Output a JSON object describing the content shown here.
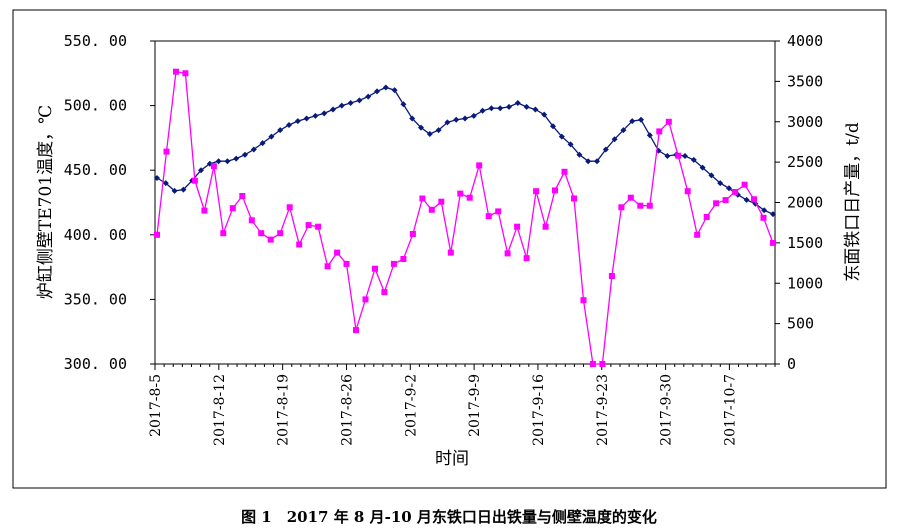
{
  "chart_data": {
    "type": "line",
    "caption": "图 1　2017 年 8 月-10 月东铁口日出铁量与侧壁温度的变化",
    "xlabel": "时间",
    "ylabel_left": "炉缸侧壁TE701温度，℃",
    "ylabel_right": "东面铁口日产量，t/d",
    "x_ticks": [
      "2017-8-5",
      "2017-8-12",
      "2017-8-19",
      "2017-8-26",
      "2017-9-2",
      "2017-9-9",
      "2017-9-16",
      "2017-9-23",
      "2017-9-30",
      "2017-10-7"
    ],
    "ylim_left": [
      300,
      550
    ],
    "ylim_right": [
      0,
      4000
    ],
    "y_ticks_left": [
      "300. 00",
      "350. 00",
      "400. 00",
      "450. 00",
      "500. 00",
      "550. 00"
    ],
    "y_ticks_right": [
      "0",
      "500",
      "1000",
      "1500",
      "2000",
      "2500",
      "3000",
      "3500",
      "4000"
    ],
    "series": [
      {
        "name": "炉缸侧壁TE701温度",
        "axis": "left",
        "color": "#0a1a7a",
        "marker": "diamond",
        "values": [
          444,
          440,
          434,
          435,
          442,
          450,
          455,
          457,
          457,
          459,
          462,
          466,
          471,
          476,
          481,
          485,
          488,
          490,
          492,
          494,
          497,
          500,
          502,
          504,
          507,
          511,
          514,
          512,
          501,
          490,
          483,
          478,
          481,
          487,
          489,
          490,
          492,
          496,
          498,
          498,
          499,
          502,
          499,
          497,
          493,
          484,
          476,
          470,
          462,
          457,
          457,
          466,
          474,
          481,
          488,
          489,
          477,
          465,
          461,
          462,
          461,
          458,
          452,
          446,
          440,
          436,
          431,
          427,
          424,
          419,
          416
        ]
      },
      {
        "name": "东面铁口日产量",
        "axis": "right",
        "color": "#ff00ff",
        "marker": "square",
        "values": [
          1600,
          2630,
          3620,
          3600,
          2270,
          1900,
          2450,
          1620,
          1930,
          2080,
          1780,
          1620,
          1540,
          1620,
          1940,
          1480,
          1720,
          1700,
          1210,
          1380,
          1240,
          420,
          800,
          1180,
          890,
          1240,
          1300,
          1610,
          2050,
          1910,
          2010,
          1380,
          2110,
          2060,
          2460,
          1830,
          1890,
          1370,
          1700,
          1310,
          2140,
          1700,
          2150,
          2380,
          2050,
          790,
          0,
          0,
          1090,
          1940,
          2060,
          1960,
          1960,
          2880,
          3000,
          2580,
          2140,
          1600,
          1820,
          1990,
          2030,
          2130,
          2220,
          2040,
          1810,
          1500
        ]
      }
    ]
  }
}
